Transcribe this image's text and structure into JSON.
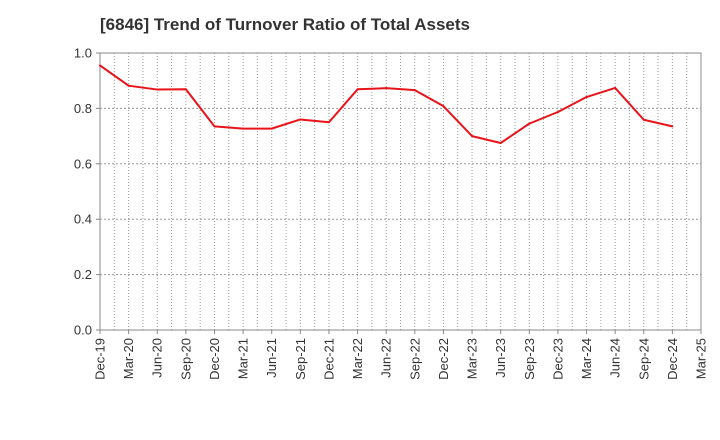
{
  "chart_data": {
    "type": "line",
    "title": "[6846]  Trend of Turnover Ratio of Total Assets",
    "xlabel": "",
    "ylabel": "",
    "ylim": [
      0,
      1.0
    ],
    "yticks": [
      "0.0",
      "0.2",
      "0.4",
      "0.6",
      "0.8",
      "1.0"
    ],
    "x_tick_labels": [
      "Dec-19",
      "Mar-20",
      "Jun-20",
      "Sep-20",
      "Dec-20",
      "Mar-21",
      "Jun-21",
      "Sep-21",
      "Dec-21",
      "Mar-22",
      "Jun-22",
      "Sep-22",
      "Dec-22",
      "Mar-23",
      "Jun-23",
      "Sep-23",
      "Dec-23",
      "Mar-24",
      "Jun-24",
      "Sep-24",
      "Dec-24",
      "Mar-25"
    ],
    "grid": true,
    "grid_style": "dotted",
    "series": [
      {
        "color": "#e8141a",
        "x": [
          "Dec-19",
          "Mar-20",
          "Jun-20",
          "Sep-20",
          "Dec-20",
          "Mar-21",
          "Jun-21",
          "Sep-21",
          "Dec-21",
          "Mar-22",
          "Jun-22",
          "Sep-22",
          "Dec-22",
          "Mar-23",
          "Jun-23",
          "Sep-23",
          "Dec-23",
          "Mar-24",
          "Jun-24",
          "Sep-24",
          "Dec-24"
        ],
        "values": [
          0.955,
          0.882,
          0.868,
          0.869,
          0.735,
          0.727,
          0.727,
          0.76,
          0.75,
          0.869,
          0.873,
          0.866,
          0.808,
          0.7,
          0.675,
          0.745,
          0.787,
          0.841,
          0.874,
          0.759,
          0.735
        ]
      }
    ]
  }
}
